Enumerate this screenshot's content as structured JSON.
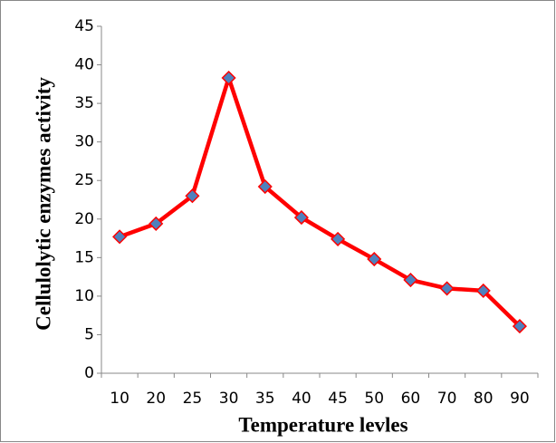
{
  "chart_data": {
    "type": "line",
    "x_label": "Temperature levles",
    "y_label": "Cellulolytic enzymes activity",
    "categories": [
      "10",
      "20",
      "25",
      "30",
      "35",
      "40",
      "45",
      "50",
      "60",
      "70",
      "80",
      "90"
    ],
    "series": [
      {
        "name": "Cellulolytic enzymes activity",
        "color": "#ff0000",
        "marker_color": "#4f81bd",
        "values": [
          17.7,
          19.4,
          23.0,
          38.3,
          24.2,
          20.2,
          17.4,
          14.8,
          12.1,
          11.0,
          10.7,
          6.1
        ]
      }
    ],
    "ylim": [
      0,
      45
    ],
    "yticks": [
      0,
      5,
      10,
      15,
      20,
      25,
      30,
      35,
      40,
      45
    ],
    "grid": false
  }
}
